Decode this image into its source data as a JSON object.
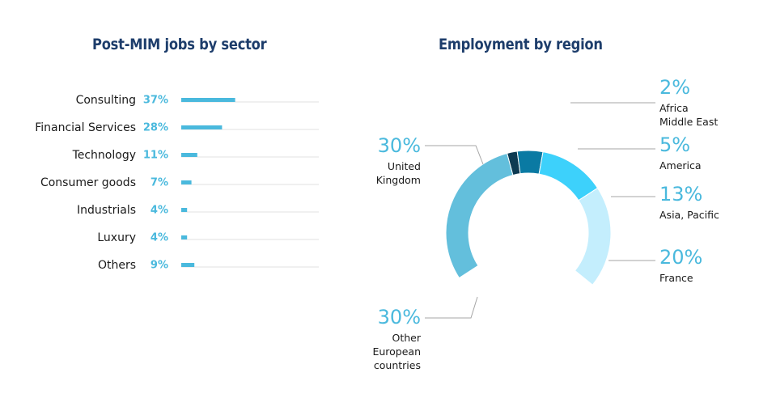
{
  "chart_data": [
    {
      "type": "bar",
      "title": "Post-MIM jobs by sector",
      "orientation": "horizontal",
      "categories": [
        "Consulting",
        "Financial Services",
        "Technology",
        "Consumer goods",
        "Industrials",
        "Luxury",
        "Others"
      ],
      "values": [
        37,
        28,
        11,
        7,
        4,
        4,
        9
      ],
      "value_labels": [
        "37%",
        "28%",
        "11%",
        "7%",
        "4%",
        "4%",
        "9%"
      ],
      "xlim": [
        0,
        100
      ],
      "bar_color": "#4ab9dd",
      "track_color": "#e2e2e2"
    },
    {
      "type": "pie",
      "style": "donut",
      "title": "Employment by region",
      "slices": [
        {
          "label_lines": [
            "Africa",
            "Middle East"
          ],
          "value": 2,
          "value_label": "2%",
          "color": "#0d3a52"
        },
        {
          "label_lines": [
            "America"
          ],
          "value": 5,
          "value_label": "5%",
          "color": "#0a7aa3"
        },
        {
          "label_lines": [
            "Asia, Pacific"
          ],
          "value": 13,
          "value_label": "13%",
          "color": "#3dd1fb"
        },
        {
          "label_lines": [
            "France"
          ],
          "value": 20,
          "value_label": "20%",
          "color": "#c4eefd"
        },
        {
          "label_lines": [
            "Other",
            "European",
            "countries"
          ],
          "value": 30,
          "value_label": "30%",
          "color": "#ffffff"
        },
        {
          "label_lines": [
            "United",
            "Kingdom"
          ],
          "value": 30,
          "value_label": "30%",
          "color": "#63bfdc"
        }
      ]
    }
  ]
}
